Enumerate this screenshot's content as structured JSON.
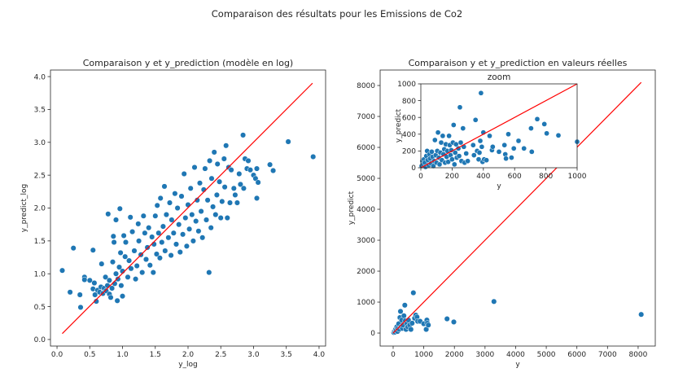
{
  "suptitle": "Comparaison des résultats pour les Emissions de Co2",
  "colors": {
    "points": "#1f77b4",
    "line": "#ff0000",
    "point_edge": "#ffffff"
  },
  "chart_data": [
    {
      "type": "scatter",
      "title": "Comparaison y et y_prediction (modèle en log)",
      "xlabel": "y_log",
      "ylabel": "y_predict_log",
      "xlim": [
        -0.1,
        4.1
      ],
      "ylim": [
        -0.1,
        4.1
      ],
      "xticks": [
        "0.0",
        "0.5",
        "1.0",
        "1.5",
        "2.0",
        "2.5",
        "3.0",
        "3.5",
        "4.0"
      ],
      "yticks": [
        "0.0",
        "0.5",
        "1.0",
        "1.5",
        "2.0",
        "2.5",
        "3.0",
        "3.5",
        "4.0"
      ],
      "grid": false,
      "reference_line": [
        [
          0.08,
          0.09
        ],
        [
          3.9,
          3.9
        ]
      ],
      "points": [
        [
          0.08,
          1.05
        ],
        [
          0.2,
          0.72
        ],
        [
          0.25,
          1.39
        ],
        [
          0.35,
          0.68
        ],
        [
          0.36,
          0.49
        ],
        [
          0.42,
          0.95
        ],
        [
          0.42,
          0.91
        ],
        [
          0.5,
          0.9
        ],
        [
          0.55,
          0.77
        ],
        [
          0.55,
          1.36
        ],
        [
          0.57,
          0.86
        ],
        [
          0.58,
          0.68
        ],
        [
          0.6,
          0.58
        ],
        [
          0.62,
          0.75
        ],
        [
          0.65,
          0.72
        ],
        [
          0.67,
          0.8
        ],
        [
          0.68,
          1.15
        ],
        [
          0.7,
          0.7
        ],
        [
          0.72,
          0.78
        ],
        [
          0.74,
          0.95
        ],
        [
          0.75,
          0.74
        ],
        [
          0.77,
          0.82
        ],
        [
          0.78,
          1.91
        ],
        [
          0.8,
          0.69
        ],
        [
          0.8,
          0.9
        ],
        [
          0.82,
          0.64
        ],
        [
          0.84,
          0.78
        ],
        [
          0.85,
          1.18
        ],
        [
          0.86,
          1.57
        ],
        [
          0.87,
          1.48
        ],
        [
          0.88,
          0.85
        ],
        [
          0.9,
          1.0
        ],
        [
          0.9,
          1.82
        ],
        [
          0.92,
          0.59
        ],
        [
          0.93,
          0.92
        ],
        [
          0.95,
          1.1
        ],
        [
          0.96,
          1.99
        ],
        [
          0.97,
          1.32
        ],
        [
          0.98,
          0.82
        ],
        [
          1.0,
          1.04
        ],
        [
          1.0,
          0.66
        ],
        [
          1.02,
          1.58
        ],
        [
          1.04,
          1.26
        ],
        [
          1.05,
          1.48
        ],
        [
          1.08,
          0.95
        ],
        [
          1.1,
          1.2
        ],
        [
          1.12,
          1.86
        ],
        [
          1.13,
          1.08
        ],
        [
          1.15,
          1.64
        ],
        [
          1.18,
          1.35
        ],
        [
          1.2,
          0.92
        ],
        [
          1.22,
          1.12
        ],
        [
          1.24,
          1.76
        ],
        [
          1.25,
          1.5
        ],
        [
          1.28,
          1.29
        ],
        [
          1.3,
          1.02
        ],
        [
          1.32,
          1.88
        ],
        [
          1.34,
          1.62
        ],
        [
          1.36,
          1.22
        ],
        [
          1.38,
          1.4
        ],
        [
          1.4,
          1.7
        ],
        [
          1.42,
          1.13
        ],
        [
          1.45,
          1.56
        ],
        [
          1.47,
          1.02
        ],
        [
          1.48,
          1.45
        ],
        [
          1.5,
          1.88
        ],
        [
          1.52,
          1.3
        ],
        [
          1.53,
          2.04
        ],
        [
          1.55,
          1.62
        ],
        [
          1.57,
          1.24
        ],
        [
          1.58,
          2.15
        ],
        [
          1.6,
          1.48
        ],
        [
          1.62,
          1.72
        ],
        [
          1.64,
          2.33
        ],
        [
          1.65,
          1.35
        ],
        [
          1.67,
          1.9
        ],
        [
          1.7,
          1.55
        ],
        [
          1.72,
          2.08
        ],
        [
          1.74,
          1.28
        ],
        [
          1.75,
          1.82
        ],
        [
          1.78,
          1.62
        ],
        [
          1.8,
          2.22
        ],
        [
          1.82,
          1.45
        ],
        [
          1.84,
          2.0
        ],
        [
          1.86,
          1.75
        ],
        [
          1.88,
          1.33
        ],
        [
          1.9,
          2.18
        ],
        [
          1.92,
          1.6
        ],
        [
          1.94,
          2.52
        ],
        [
          1.96,
          1.85
        ],
        [
          1.98,
          1.42
        ],
        [
          2.0,
          2.05
        ],
        [
          2.02,
          1.68
        ],
        [
          2.04,
          2.3
        ],
        [
          2.06,
          1.9
        ],
        [
          2.08,
          1.5
        ],
        [
          2.1,
          2.62
        ],
        [
          2.12,
          1.8
        ],
        [
          2.14,
          2.12
        ],
        [
          2.16,
          1.65
        ],
        [
          2.18,
          2.38
        ],
        [
          2.2,
          1.95
        ],
        [
          2.22,
          1.55
        ],
        [
          2.24,
          2.28
        ],
        [
          2.26,
          2.6
        ],
        [
          2.28,
          1.82
        ],
        [
          2.3,
          2.12
        ],
        [
          2.32,
          1.02
        ],
        [
          2.33,
          2.72
        ],
        [
          2.35,
          1.7
        ],
        [
          2.36,
          2.45
        ],
        [
          2.38,
          2.02
        ],
        [
          2.4,
          2.85
        ],
        [
          2.42,
          1.9
        ],
        [
          2.44,
          2.2
        ],
        [
          2.45,
          2.67
        ],
        [
          2.48,
          2.4
        ],
        [
          2.5,
          1.85
        ],
        [
          2.52,
          2.1
        ],
        [
          2.55,
          2.75
        ],
        [
          2.56,
          2.32
        ],
        [
          2.58,
          2.95
        ],
        [
          2.6,
          1.85
        ],
        [
          2.62,
          2.62
        ],
        [
          2.64,
          2.08
        ],
        [
          2.66,
          2.58
        ],
        [
          2.7,
          2.3
        ],
        [
          2.72,
          2.2
        ],
        [
          2.75,
          2.08
        ],
        [
          2.78,
          2.52
        ],
        [
          2.8,
          2.36
        ],
        [
          2.84,
          3.11
        ],
        [
          2.85,
          2.3
        ],
        [
          2.87,
          2.75
        ],
        [
          2.9,
          2.6
        ],
        [
          2.92,
          2.72
        ],
        [
          2.95,
          2.58
        ],
        [
          3.0,
          2.5
        ],
        [
          3.03,
          2.45
        ],
        [
          3.05,
          2.15
        ],
        [
          3.05,
          2.6
        ],
        [
          3.07,
          2.39
        ],
        [
          3.25,
          2.66
        ],
        [
          3.3,
          2.57
        ],
        [
          3.53,
          3.01
        ],
        [
          3.91,
          2.78
        ]
      ]
    },
    {
      "type": "scatter",
      "title": "Comparaison y et y_prediction en valeurs réelles",
      "xlabel": "y",
      "ylabel": "y_predict",
      "xlim": [
        -425,
        8560
      ],
      "ylim": [
        -420,
        8500
      ],
      "xticks": [
        "0",
        "1000",
        "2000",
        "3000",
        "4000",
        "5000",
        "6000",
        "7000",
        "8000"
      ],
      "yticks": [
        "0",
        "1000",
        "2000",
        "3000",
        "4000",
        "5000",
        "6000",
        "7000",
        "8000"
      ],
      "grid": false,
      "reference_line": [
        [
          0,
          0
        ],
        [
          8100,
          8100
        ]
      ],
      "points": [
        [
          20,
          20
        ],
        [
          40,
          60
        ],
        [
          60,
          30
        ],
        [
          80,
          120
        ],
        [
          100,
          80
        ],
        [
          120,
          200
        ],
        [
          140,
          50
        ],
        [
          150,
          150
        ],
        [
          180,
          300
        ],
        [
          200,
          120
        ],
        [
          220,
          500
        ],
        [
          240,
          700
        ],
        [
          260,
          200
        ],
        [
          280,
          420
        ],
        [
          300,
          150
        ],
        [
          320,
          260
        ],
        [
          350,
          560
        ],
        [
          380,
          900
        ],
        [
          400,
          400
        ],
        [
          420,
          120
        ],
        [
          450,
          300
        ],
        [
          480,
          200
        ],
        [
          500,
          420
        ],
        [
          540,
          260
        ],
        [
          580,
          120
        ],
        [
          620,
          320
        ],
        [
          660,
          1300
        ],
        [
          700,
          480
        ],
        [
          740,
          580
        ],
        [
          780,
          520
        ],
        [
          800,
          380
        ],
        [
          880,
          380
        ],
        [
          1000,
          300
        ],
        [
          1080,
          120
        ],
        [
          1100,
          420
        ],
        [
          1120,
          320
        ],
        [
          1150,
          260
        ],
        [
          1760,
          460
        ],
        [
          1980,
          360
        ],
        [
          3290,
          1020
        ],
        [
          8100,
          600
        ]
      ]
    },
    {
      "type": "scatter",
      "title": "zoom",
      "xlabel": "y",
      "ylabel": "y_predict",
      "xlim": [
        0,
        1000
      ],
      "ylim": [
        0,
        1000
      ],
      "xticks": [
        "0",
        "200",
        "400",
        "600",
        "800",
        "1000"
      ],
      "yticks": [
        "0",
        "200",
        "400",
        "600",
        "800",
        "1000"
      ],
      "grid": false,
      "reference_line": [
        [
          0,
          0
        ],
        [
          1000,
          1000
        ]
      ],
      "points": [
        [
          5,
          20
        ],
        [
          10,
          80
        ],
        [
          15,
          40
        ],
        [
          20,
          100
        ],
        [
          25,
          60
        ],
        [
          30,
          10
        ],
        [
          35,
          140
        ],
        [
          40,
          200
        ],
        [
          45,
          90
        ],
        [
          50,
          30
        ],
        [
          55,
          160
        ],
        [
          60,
          110
        ],
        [
          65,
          50
        ],
        [
          70,
          190
        ],
        [
          75,
          130
        ],
        [
          80,
          20
        ],
        [
          85,
          80
        ],
        [
          90,
          330
        ],
        [
          95,
          150
        ],
        [
          100,
          60
        ],
        [
          105,
          200
        ],
        [
          110,
          420
        ],
        [
          115,
          120
        ],
        [
          120,
          40
        ],
        [
          125,
          180
        ],
        [
          130,
          300
        ],
        [
          135,
          90
        ],
        [
          140,
          380
        ],
        [
          145,
          160
        ],
        [
          150,
          220
        ],
        [
          155,
          60
        ],
        [
          160,
          280
        ],
        [
          165,
          130
        ],
        [
          170,
          200
        ],
        [
          175,
          70
        ],
        [
          180,
          380
        ],
        [
          185,
          270
        ],
        [
          190,
          150
        ],
        [
          195,
          210
        ],
        [
          200,
          100
        ],
        [
          205,
          300
        ],
        [
          210,
          510
        ],
        [
          215,
          40
        ],
        [
          220,
          180
        ],
        [
          225,
          280
        ],
        [
          230,
          120
        ],
        [
          240,
          230
        ],
        [
          245,
          140
        ],
        [
          250,
          720
        ],
        [
          255,
          300
        ],
        [
          260,
          80
        ],
        [
          270,
          470
        ],
        [
          275,
          250
        ],
        [
          280,
          60
        ],
        [
          290,
          170
        ],
        [
          300,
          80
        ],
        [
          335,
          270
        ],
        [
          340,
          150
        ],
        [
          350,
          570
        ],
        [
          360,
          200
        ],
        [
          370,
          100
        ],
        [
          375,
          180
        ],
        [
          380,
          320
        ],
        [
          385,
          890
        ],
        [
          390,
          250
        ],
        [
          395,
          70
        ],
        [
          400,
          420
        ],
        [
          405,
          100
        ],
        [
          420,
          90
        ],
        [
          440,
          380
        ],
        [
          455,
          210
        ],
        [
          460,
          250
        ],
        [
          500,
          190
        ],
        [
          535,
          270
        ],
        [
          540,
          160
        ],
        [
          545,
          110
        ],
        [
          560,
          400
        ],
        [
          580,
          120
        ],
        [
          595,
          230
        ],
        [
          625,
          320
        ],
        [
          660,
          230
        ],
        [
          705,
          470
        ],
        [
          710,
          190
        ],
        [
          745,
          580
        ],
        [
          790,
          520
        ],
        [
          805,
          410
        ],
        [
          880,
          385
        ],
        [
          1000,
          310
        ]
      ]
    }
  ]
}
